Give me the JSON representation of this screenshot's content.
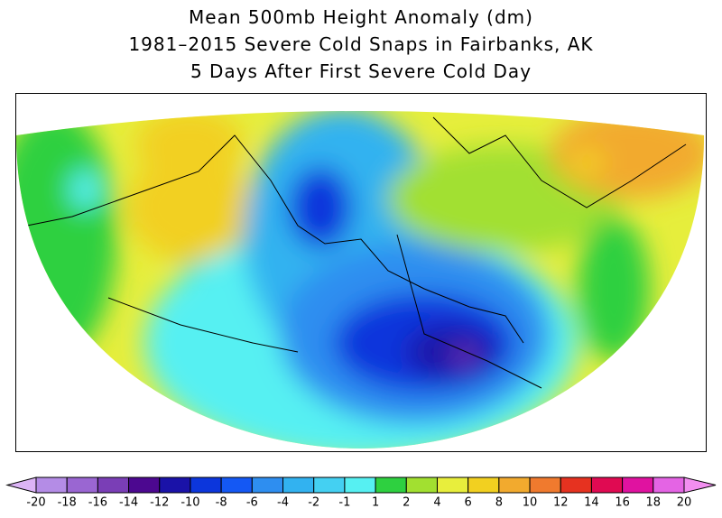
{
  "title": [
    "Mean 500mb Height Anomaly (dm)",
    "1981–2015 Severe Cold Snaps in Fairbanks, AK",
    "5 Days After First Severe Cold Day"
  ],
  "colorbar": {
    "levels": [
      -20,
      -18,
      -16,
      -14,
      -12,
      -10,
      -8,
      -6,
      -4,
      -2,
      -1,
      1,
      2,
      4,
      6,
      8,
      10,
      12,
      14,
      16,
      18,
      20
    ],
    "colors": [
      "#b48ce6",
      "#9a66d2",
      "#7a3eb6",
      "#4c0890",
      "#1a12a8",
      "#0c36dc",
      "#1458f4",
      "#2e8ef0",
      "#32b2f0",
      "#44d0f2",
      "#56f0f2",
      "#2ed040",
      "#a2e030",
      "#e8ee3c",
      "#f2d020",
      "#f2aa2e",
      "#f07a2e",
      "#e63220",
      "#e00a52",
      "#e012a0",
      "#e464e4"
    ],
    "under_color": "#dcb4f6",
    "over_color": "#f28ef0"
  }
}
